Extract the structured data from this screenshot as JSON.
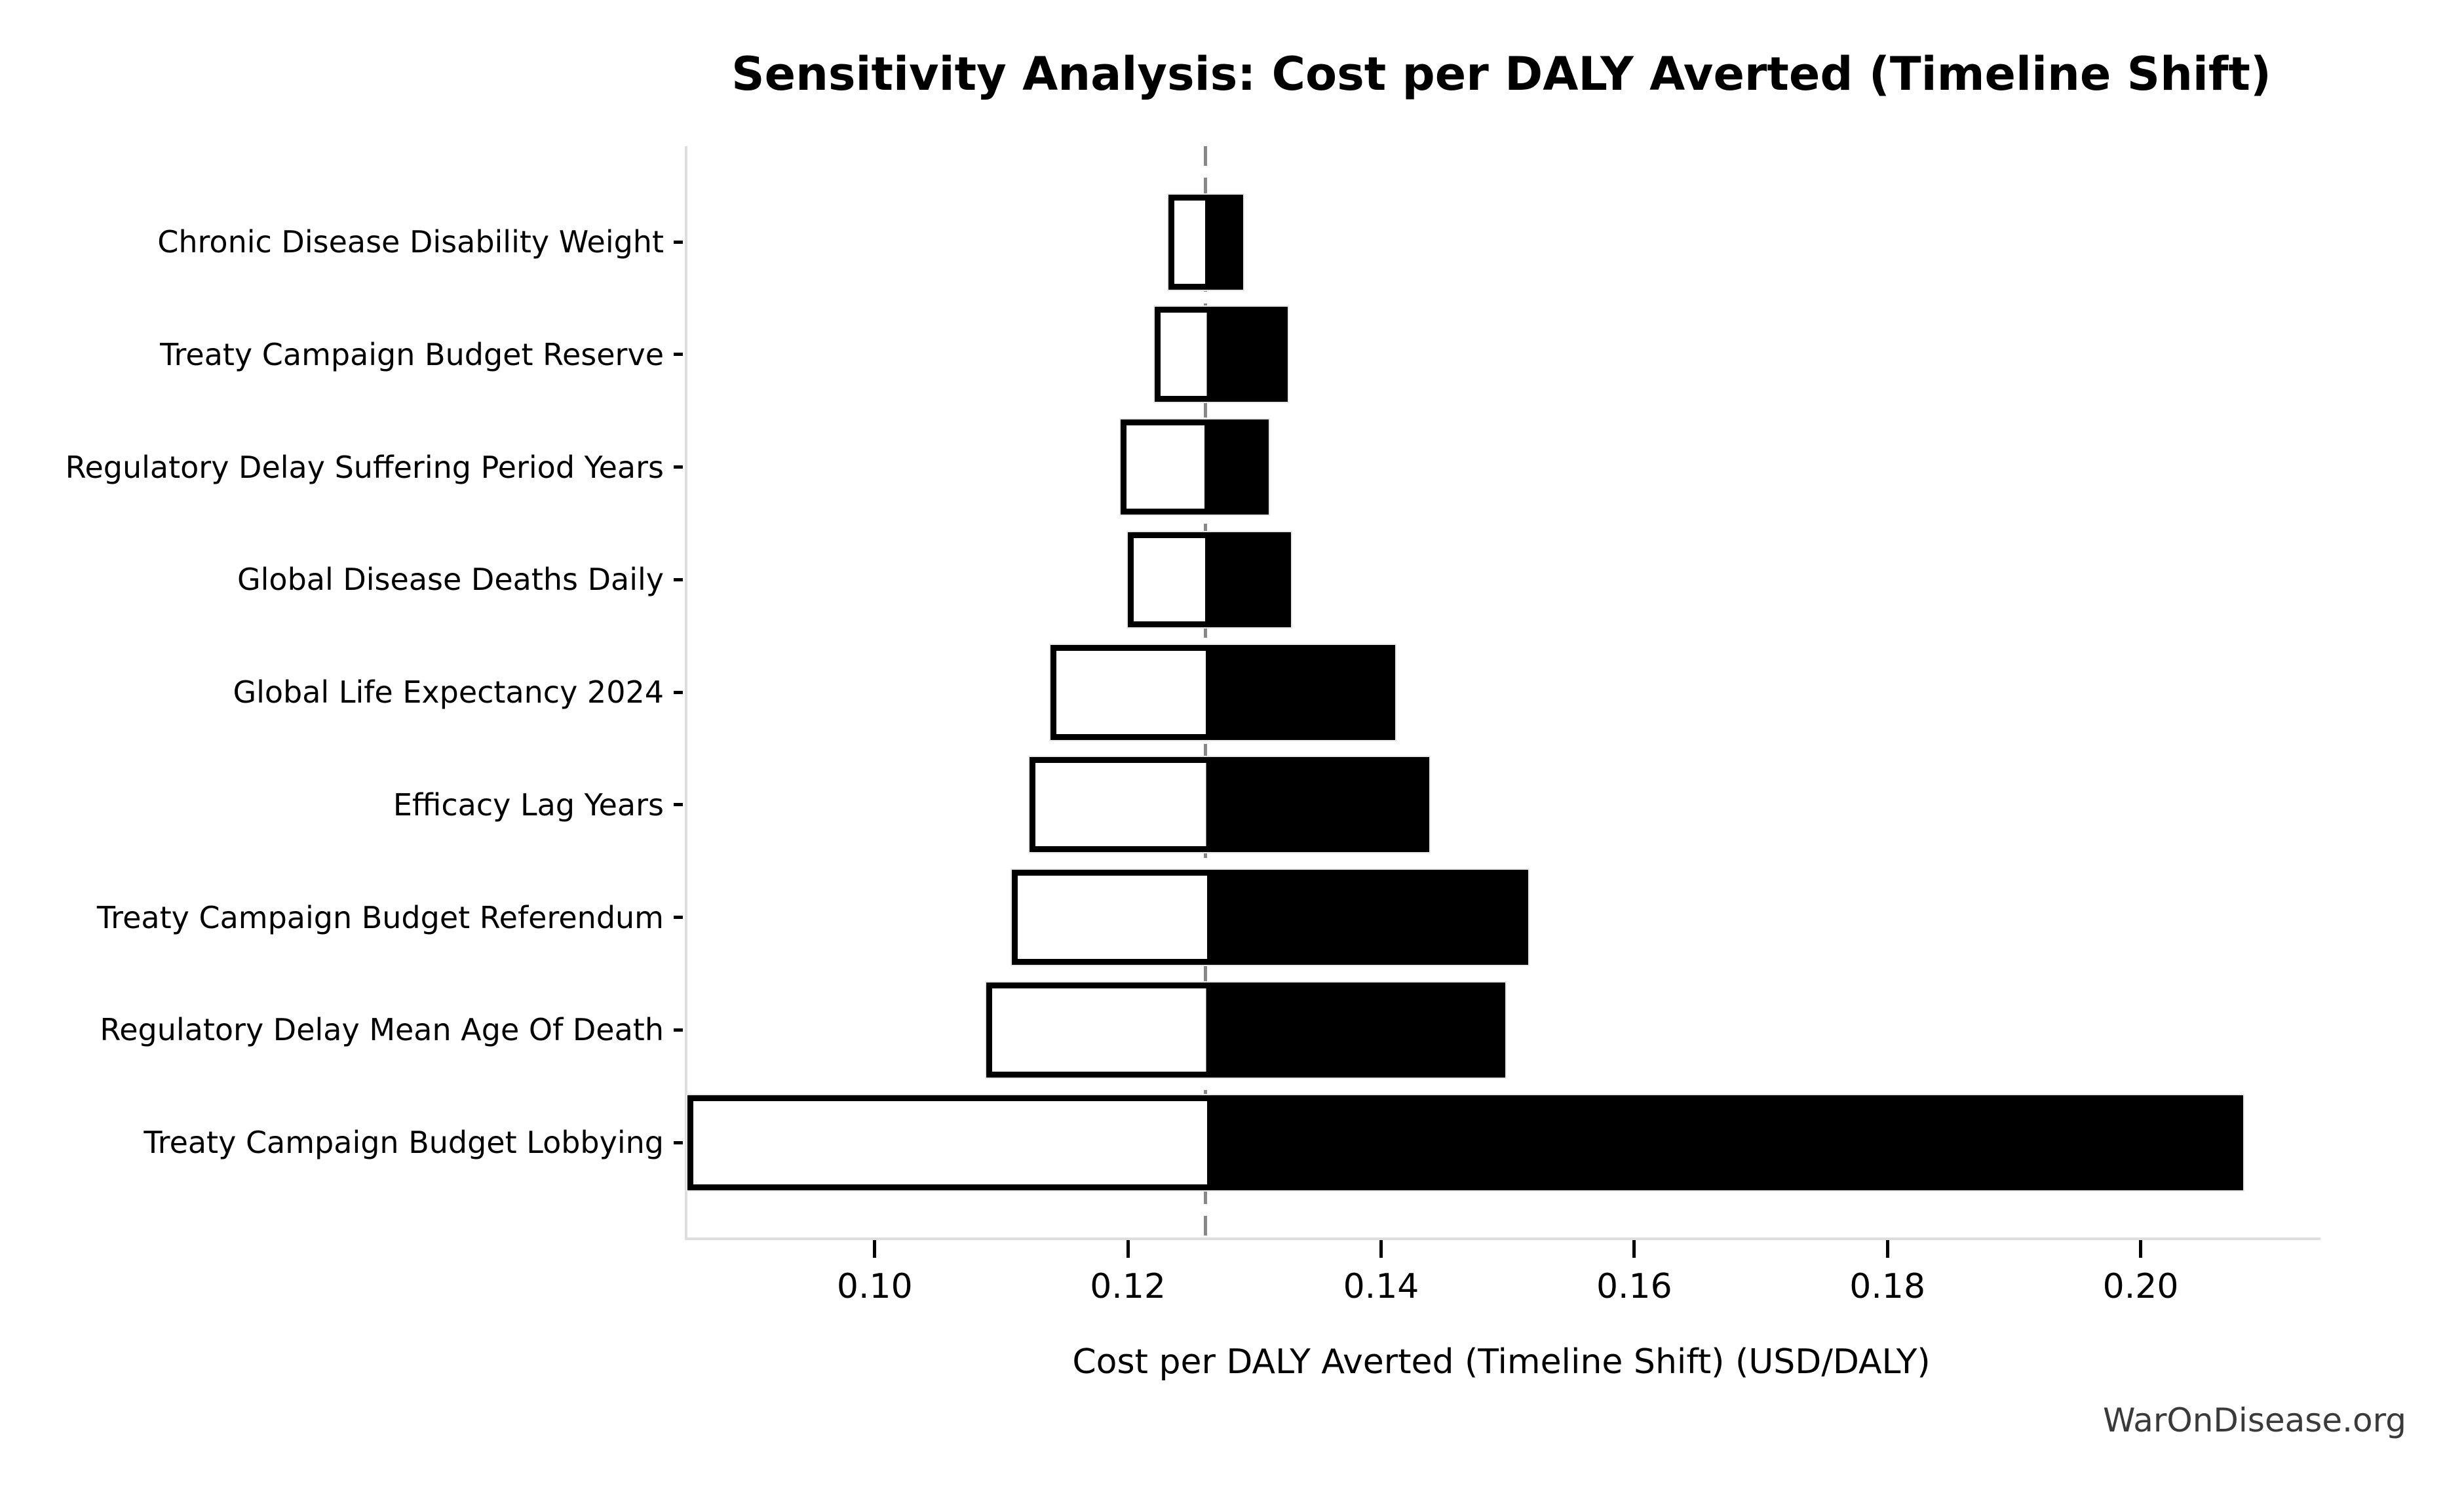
{
  "title": "Sensitivity Analysis: Cost per DALY Averted (Timeline Shift)",
  "watermark": "WarOnDisease.org",
  "chart_data": {
    "type": "bar",
    "subtype": "tornado",
    "title": "Sensitivity Analysis: Cost per DALY Averted (Timeline Shift)",
    "xlabel": "Cost per DALY Averted (Timeline Shift) (USD/DALY)",
    "ylabel": "",
    "baseline": 0.1259,
    "xlim": [
      0.085,
      0.214
    ],
    "grid": false,
    "legend": "none",
    "x_ticks": [
      0.1,
      0.12,
      0.14,
      0.16,
      0.18,
      0.2
    ],
    "x_tick_labels": [
      "0.10",
      "0.12",
      "0.14",
      "0.16",
      "0.18",
      "0.20"
    ],
    "categories": [
      "Chronic Disease Disability Weight",
      "Treaty Campaign Budget Reserve",
      "Regulatory Delay Suffering Period Years",
      "Global Disease Deaths Daily",
      "Global Life Expectancy 2024",
      "Efficacy Lag Years",
      "Treaty Campaign Budget Referendum",
      "Regulatory Delay Mean Age Of Death",
      "Treaty Campaign Budget Lobbying"
    ],
    "series": [
      {
        "name": "low",
        "values": [
          0.123,
          0.1219,
          0.1192,
          0.1198,
          0.1137,
          0.112,
          0.1106,
          0.1086,
          0.085
        ]
      },
      {
        "name": "high",
        "values": [
          0.1289,
          0.1324,
          0.1309,
          0.1327,
          0.1409,
          0.1436,
          0.1514,
          0.1496,
          0.2079
        ]
      }
    ],
    "colors": {
      "low_fill": "#ffffff",
      "high_fill": "#000000",
      "bar_edge": "#000000",
      "baseline_line": "#888888",
      "spine": "#dedede",
      "tick": "#000000",
      "text": "#000000",
      "watermark_text": "#3a3a3a"
    }
  }
}
